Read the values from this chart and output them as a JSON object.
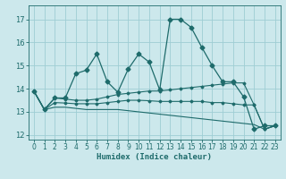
{
  "xlabel": "Humidex (Indice chaleur)",
  "xlim": [
    -0.5,
    23.5
  ],
  "ylim": [
    11.8,
    17.6
  ],
  "yticks": [
    12,
    13,
    14,
    15,
    16,
    17
  ],
  "xticks": [
    0,
    1,
    2,
    3,
    4,
    5,
    6,
    7,
    8,
    9,
    10,
    11,
    12,
    13,
    14,
    15,
    16,
    17,
    18,
    19,
    20,
    21,
    22,
    23
  ],
  "bg_color": "#cce8ec",
  "grid_color": "#9ecdd4",
  "line_color": "#1e6b6b",
  "lines": [
    {
      "x": [
        0,
        1,
        2,
        3,
        4,
        5,
        6,
        7,
        8,
        9,
        10,
        11,
        12,
        13,
        14,
        15,
        16,
        17,
        18,
        19,
        20,
        21,
        22,
        23
      ],
      "y": [
        13.9,
        13.1,
        13.6,
        13.6,
        14.65,
        14.8,
        15.5,
        14.3,
        13.85,
        14.85,
        15.5,
        15.15,
        13.95,
        17.0,
        17.0,
        16.65,
        15.8,
        15.0,
        14.3,
        14.3,
        13.65,
        12.25,
        12.4,
        12.4
      ],
      "marker": "D",
      "markersize": 2.5,
      "linewidth": 0.9
    },
    {
      "x": [
        0,
        1,
        2,
        3,
        4,
        5,
        6,
        7,
        8,
        9,
        10,
        11,
        12,
        13,
        14,
        15,
        16,
        17,
        18,
        19,
        20,
        21,
        22,
        23
      ],
      "y": [
        13.9,
        13.1,
        13.6,
        13.55,
        13.5,
        13.5,
        13.55,
        13.65,
        13.75,
        13.8,
        13.85,
        13.9,
        13.9,
        13.95,
        14.0,
        14.05,
        14.1,
        14.15,
        14.2,
        14.25,
        14.25,
        13.3,
        12.25,
        12.4
      ],
      "marker": "D",
      "markersize": 1.5,
      "linewidth": 0.8
    },
    {
      "x": [
        0,
        1,
        2,
        3,
        4,
        5,
        6,
        7,
        8,
        9,
        10,
        11,
        12,
        13,
        14,
        15,
        16,
        17,
        18,
        19,
        20,
        21,
        22,
        23
      ],
      "y": [
        13.9,
        13.1,
        13.4,
        13.38,
        13.35,
        13.35,
        13.35,
        13.4,
        13.45,
        13.5,
        13.5,
        13.48,
        13.45,
        13.45,
        13.45,
        13.45,
        13.45,
        13.4,
        13.4,
        13.35,
        13.3,
        13.3,
        12.25,
        12.4
      ],
      "marker": "D",
      "markersize": 1.5,
      "linewidth": 0.8
    },
    {
      "x": [
        0,
        1,
        2,
        3,
        4,
        5,
        6,
        7,
        8,
        9,
        10,
        11,
        12,
        13,
        14,
        15,
        16,
        17,
        18,
        19,
        20,
        21,
        22,
        23
      ],
      "y": [
        13.9,
        13.1,
        13.2,
        13.2,
        13.15,
        13.1,
        13.1,
        13.1,
        13.1,
        13.05,
        13.0,
        12.95,
        12.9,
        12.85,
        12.8,
        12.75,
        12.7,
        12.65,
        12.6,
        12.55,
        12.5,
        12.45,
        12.25,
        12.4
      ],
      "marker": null,
      "markersize": 0,
      "linewidth": 0.8
    }
  ]
}
